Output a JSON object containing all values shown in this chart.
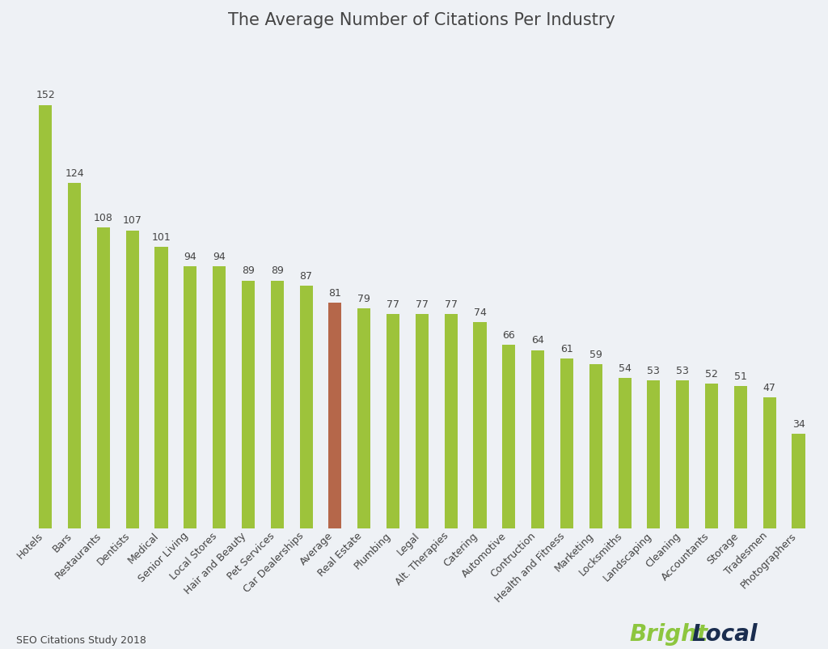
{
  "title": "The Average Number of Citations Per Industry",
  "categories": [
    "Hotels",
    "Bars",
    "Restaurants",
    "Dentists",
    "Medical",
    "Senior Living",
    "Local Stores",
    "Hair and Beauty",
    "Pet Services",
    "Car Dealerships",
    "Average",
    "Real Estate",
    "Plumbing",
    "Legal",
    "Alt. Therapies",
    "Catering",
    "Automotive",
    "Contruction",
    "Health and Fitness",
    "Marketing",
    "Locksmiths",
    "Landscaping",
    "Cleaning",
    "Accountants",
    "Storage",
    "Tradesmen",
    "Photographers"
  ],
  "values": [
    152,
    124,
    108,
    107,
    101,
    94,
    94,
    89,
    89,
    87,
    81,
    79,
    77,
    77,
    77,
    74,
    66,
    64,
    61,
    59,
    54,
    53,
    53,
    52,
    51,
    47,
    34
  ],
  "bar_colors": [
    "#9dc33b",
    "#9dc33b",
    "#9dc33b",
    "#9dc33b",
    "#9dc33b",
    "#9dc33b",
    "#9dc33b",
    "#9dc33b",
    "#9dc33b",
    "#9dc33b",
    "#b5674a",
    "#9dc33b",
    "#9dc33b",
    "#9dc33b",
    "#9dc33b",
    "#9dc33b",
    "#9dc33b",
    "#9dc33b",
    "#9dc33b",
    "#9dc33b",
    "#9dc33b",
    "#9dc33b",
    "#9dc33b",
    "#9dc33b",
    "#9dc33b",
    "#9dc33b",
    "#9dc33b"
  ],
  "background_color": "#eef1f5",
  "label_color": "#444444",
  "title_fontsize": 15,
  "label_fontsize": 9,
  "value_fontsize": 9,
  "footer_text": "SEO Citations Study 2018",
  "bright_text": "Bright",
  "local_text": "Local",
  "bright_color": "#8dc63f",
  "local_color": "#1a2d4f",
  "bar_width": 0.45,
  "ylim": [
    0,
    175
  ]
}
